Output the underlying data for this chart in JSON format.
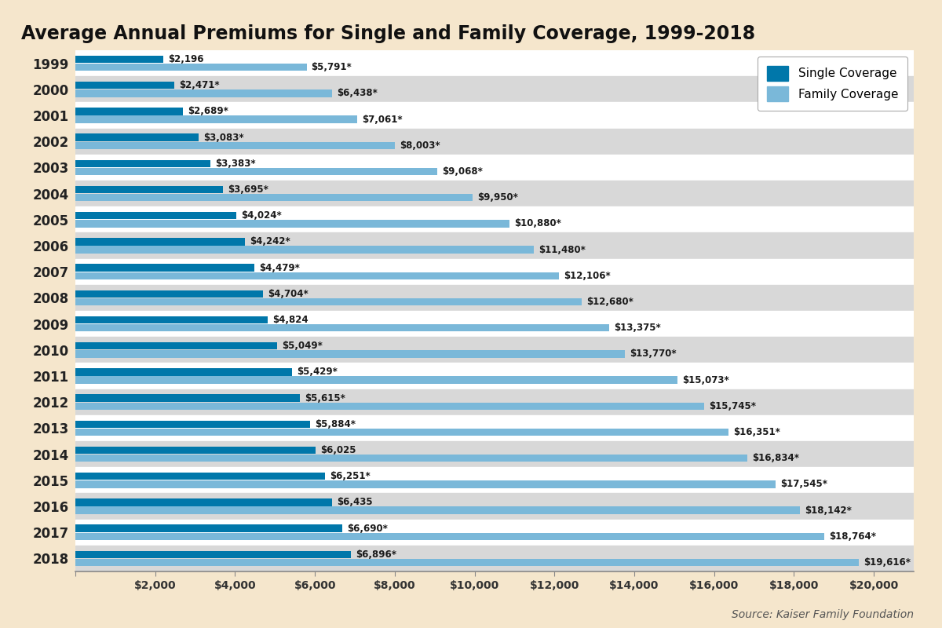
{
  "title": "Average Annual Premiums for Single and Family Coverage, 1999-2018",
  "source": "Source: Kaiser Family Foundation",
  "years": [
    1999,
    2000,
    2001,
    2002,
    2003,
    2004,
    2005,
    2006,
    2007,
    2008,
    2009,
    2010,
    2011,
    2012,
    2013,
    2014,
    2015,
    2016,
    2017,
    2018
  ],
  "single": [
    2196,
    2471,
    2689,
    3083,
    3383,
    3695,
    4024,
    4242,
    4479,
    4704,
    4824,
    5049,
    5429,
    5615,
    5884,
    6025,
    6251,
    6435,
    6690,
    6896
  ],
  "family": [
    5791,
    6438,
    7061,
    8003,
    9068,
    9950,
    10880,
    11480,
    12106,
    12680,
    13375,
    13770,
    15073,
    15745,
    16351,
    16834,
    17545,
    18142,
    18764,
    19616
  ],
  "single_labels": [
    "$2,196",
    "$2,471*",
    "$2,689*",
    "$3,083*",
    "$3,383*",
    "$3,695*",
    "$4,024*",
    "$4,242*",
    "$4,479*",
    "$4,704*",
    "$4,824",
    "$5,049*",
    "$5,429*",
    "$5,615*",
    "$5,884*",
    "$6,025",
    "$6,251*",
    "$6,435",
    "$6,690*",
    "$6,896*"
  ],
  "family_labels": [
    "$5,791*",
    "$6,438*",
    "$7,061*",
    "$8,003*",
    "$9,068*",
    "$9,950*",
    "$10,880*",
    "$11,480*",
    "$12,106*",
    "$12,680*",
    "$13,375*",
    "$13,770*",
    "$15,073*",
    "$15,745*",
    "$16,351*",
    "$16,834*",
    "$17,545*",
    "$18,142*",
    "$18,764*",
    "$19,616*"
  ],
  "single_color": "#0077aa",
  "family_color": "#7ab8d9",
  "background_color": "#f5e6cc",
  "chart_bg_white": "#ffffff",
  "chart_bg_grey": "#d8d8d8",
  "xlim": [
    0,
    21000
  ],
  "xticks": [
    0,
    2000,
    4000,
    6000,
    8000,
    10000,
    12000,
    14000,
    16000,
    18000,
    20000
  ],
  "xtick_labels": [
    "",
    "$2,000",
    "$4,000",
    "$6,000",
    "$8,000",
    "$10,000",
    "$12,000",
    "$14,000",
    "$16,000",
    "$18,000",
    "$20,000"
  ],
  "legend_single": "Single Coverage",
  "legend_family": "Family Coverage",
  "title_fontsize": 17,
  "label_fontsize": 8.5,
  "tick_fontsize": 10,
  "year_fontsize": 12
}
